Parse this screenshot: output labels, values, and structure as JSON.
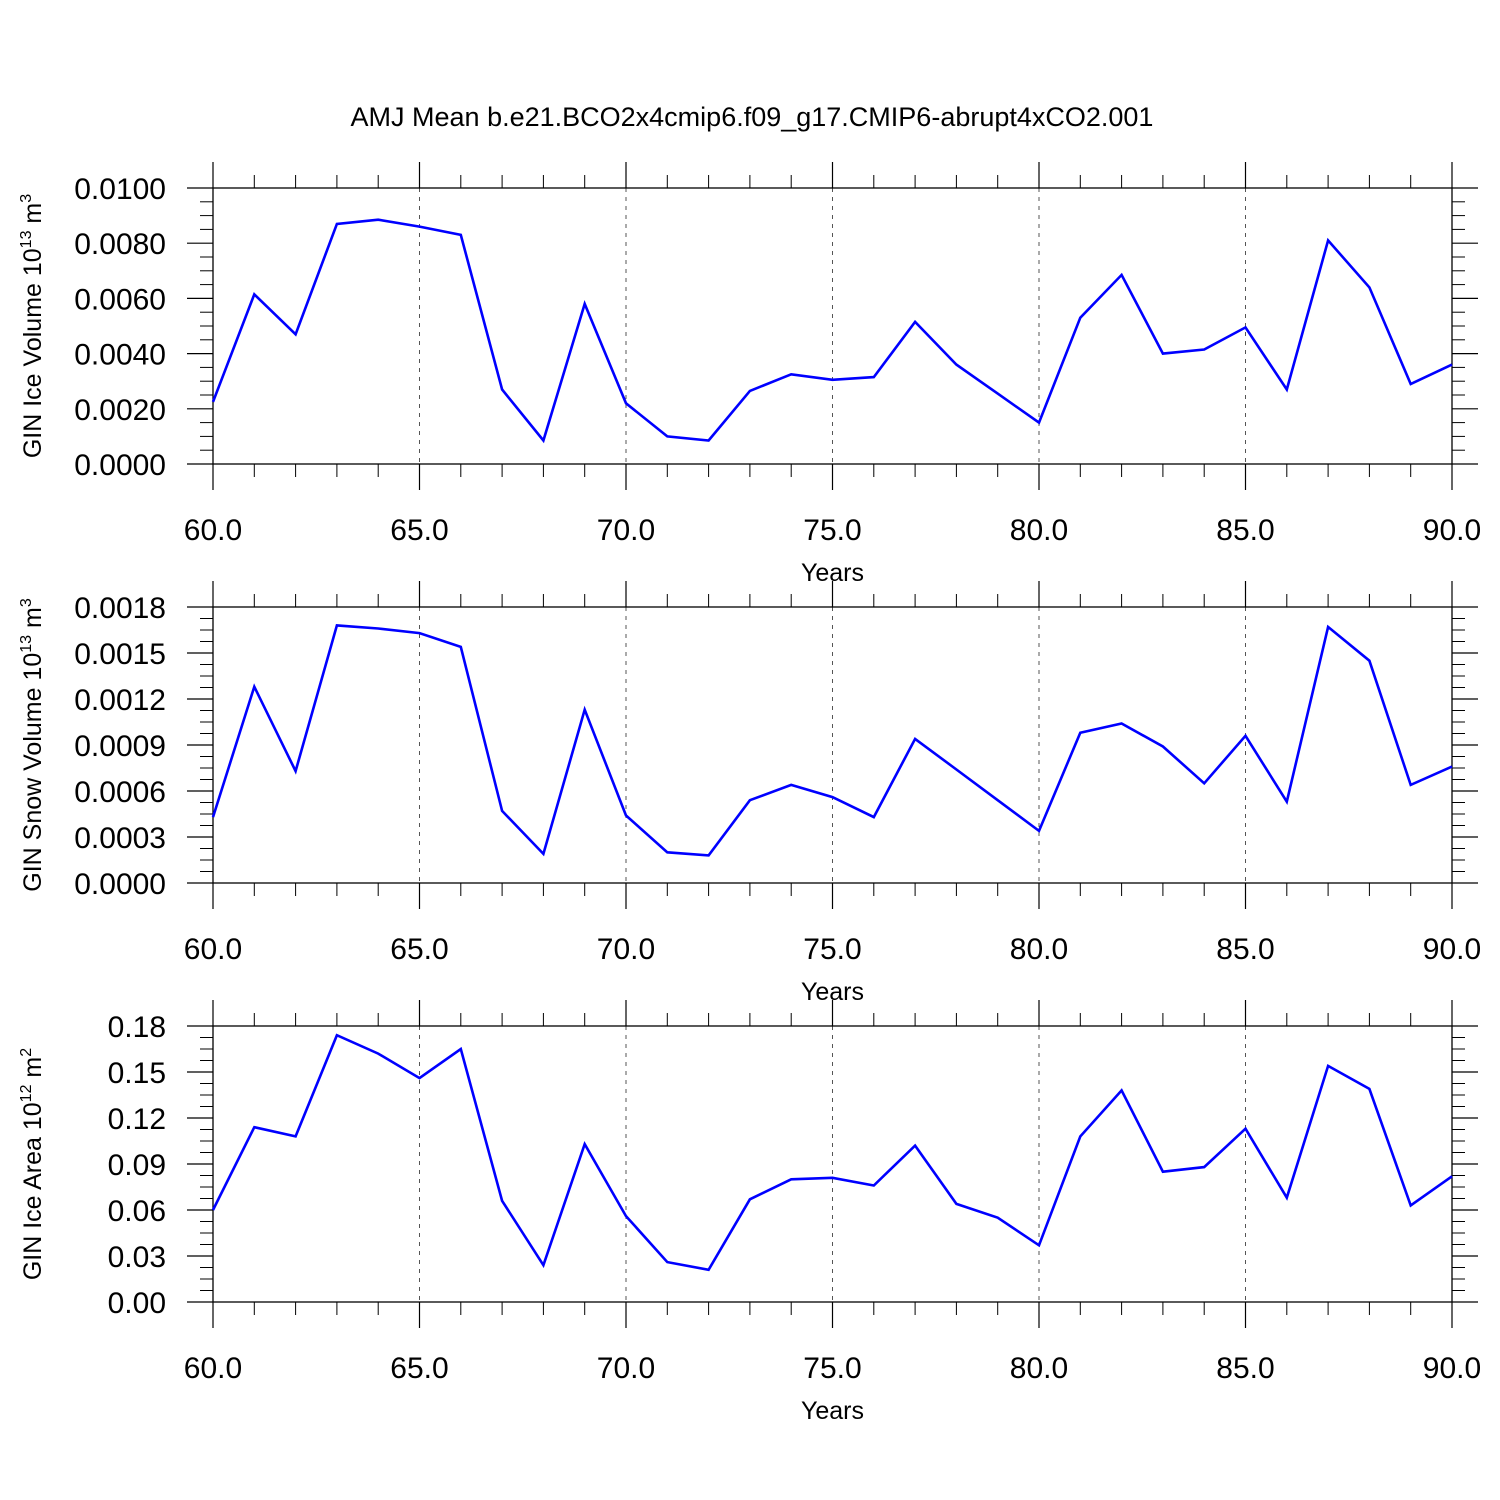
{
  "title": "AMJ Mean b.e21.BCO2x4cmip6.f09_g17.CMIP6-abrupt4xCO2.001",
  "colors": {
    "line": "#0000ff",
    "axis": "#000000",
    "grid": "#555555"
  },
  "chart_data": [
    {
      "type": "line",
      "ylabel": {
        "main": "GIN Ice Volume 10",
        "exp": "13",
        "unit": " m",
        "unit_exp": "3"
      },
      "xlabel": "Years",
      "xlim": [
        60,
        90
      ],
      "ylim": [
        0,
        0.01
      ],
      "xticks": [
        60,
        65,
        70,
        75,
        80,
        85,
        90
      ],
      "xtick_labels": [
        "60.0",
        "65.0",
        "70.0",
        "75.0",
        "80.0",
        "85.0",
        "90.0"
      ],
      "yticks": [
        0,
        0.002,
        0.004,
        0.006,
        0.008,
        0.01
      ],
      "ytick_labels": [
        "0.0000",
        "0.0020",
        "0.0040",
        "0.0060",
        "0.0080",
        "0.0100"
      ],
      "x": [
        60,
        61,
        62,
        63,
        64,
        65,
        66,
        67,
        68,
        69,
        70,
        71,
        72,
        73,
        74,
        75,
        76,
        77,
        78,
        79,
        80,
        81,
        82,
        83,
        84,
        85,
        86,
        87,
        88,
        89,
        90
      ],
      "series": [
        {
          "values": [
            0.00225,
            0.00615,
            0.0047,
            0.0087,
            0.00885,
            0.0086,
            0.0083,
            0.0027,
            0.00085,
            0.0058,
            0.0022,
            0.001,
            0.00085,
            0.00265,
            0.00325,
            0.00305,
            0.00315,
            0.00515,
            0.0036,
            0.00255,
            0.0015,
            0.0053,
            0.00685,
            0.004,
            0.00415,
            0.00495,
            0.0027,
            0.0081,
            0.0064,
            0.0029,
            0.0036
          ]
        }
      ]
    },
    {
      "type": "line",
      "ylabel": {
        "main": "GIN Snow Volume 10",
        "exp": "13",
        "unit": " m",
        "unit_exp": "3"
      },
      "xlabel": "Years",
      "xlim": [
        60,
        90
      ],
      "ylim": [
        0,
        0.0018
      ],
      "xticks": [
        60,
        65,
        70,
        75,
        80,
        85,
        90
      ],
      "xtick_labels": [
        "60.0",
        "65.0",
        "70.0",
        "75.0",
        "80.0",
        "85.0",
        "90.0"
      ],
      "yticks": [
        0,
        0.0003,
        0.0006,
        0.0009,
        0.0012,
        0.0015,
        0.0018
      ],
      "ytick_labels": [
        "0.0000",
        "0.0003",
        "0.0006",
        "0.0009",
        "0.0012",
        "0.0015",
        "0.0018"
      ],
      "x": [
        60,
        61,
        62,
        63,
        64,
        65,
        66,
        67,
        68,
        69,
        70,
        71,
        72,
        73,
        74,
        75,
        76,
        77,
        78,
        79,
        80,
        81,
        82,
        83,
        84,
        85,
        86,
        87,
        88,
        89,
        90
      ],
      "series": [
        {
          "values": [
            0.00043,
            0.00128,
            0.00073,
            0.00168,
            0.00166,
            0.00163,
            0.00154,
            0.00047,
            0.00019,
            0.00113,
            0.00044,
            0.0002,
            0.00018,
            0.00054,
            0.00064,
            0.00056,
            0.00043,
            0.00094,
            0.00074,
            0.00054,
            0.00034,
            0.00098,
            0.00104,
            0.00089,
            0.00065,
            0.00096,
            0.00053,
            0.00167,
            0.00145,
            0.00064,
            0.00076
          ]
        }
      ]
    },
    {
      "type": "line",
      "ylabel": {
        "main": "GIN Ice Area 10",
        "exp": "12",
        "unit": " m",
        "unit_exp": "2"
      },
      "xlabel": "Years",
      "xlim": [
        60,
        90
      ],
      "ylim": [
        0,
        0.18
      ],
      "xticks": [
        60,
        65,
        70,
        75,
        80,
        85,
        90
      ],
      "xtick_labels": [
        "60.0",
        "65.0",
        "70.0",
        "75.0",
        "80.0",
        "85.0",
        "90.0"
      ],
      "yticks": [
        0,
        0.03,
        0.06,
        0.09,
        0.12,
        0.15,
        0.18
      ],
      "ytick_labels": [
        "0.00",
        "0.03",
        "0.06",
        "0.09",
        "0.12",
        "0.15",
        "0.18"
      ],
      "x": [
        60,
        61,
        62,
        63,
        64,
        65,
        66,
        67,
        68,
        69,
        70,
        71,
        72,
        73,
        74,
        75,
        76,
        77,
        78,
        79,
        80,
        81,
        82,
        83,
        84,
        85,
        86,
        87,
        88,
        89,
        90
      ],
      "series": [
        {
          "values": [
            0.06,
            0.114,
            0.108,
            0.174,
            0.162,
            0.146,
            0.165,
            0.066,
            0.024,
            0.103,
            0.056,
            0.026,
            0.021,
            0.067,
            0.08,
            0.081,
            0.076,
            0.102,
            0.064,
            0.055,
            0.037,
            0.108,
            0.138,
            0.085,
            0.088,
            0.113,
            0.068,
            0.154,
            0.139,
            0.063,
            0.082
          ]
        }
      ]
    }
  ]
}
